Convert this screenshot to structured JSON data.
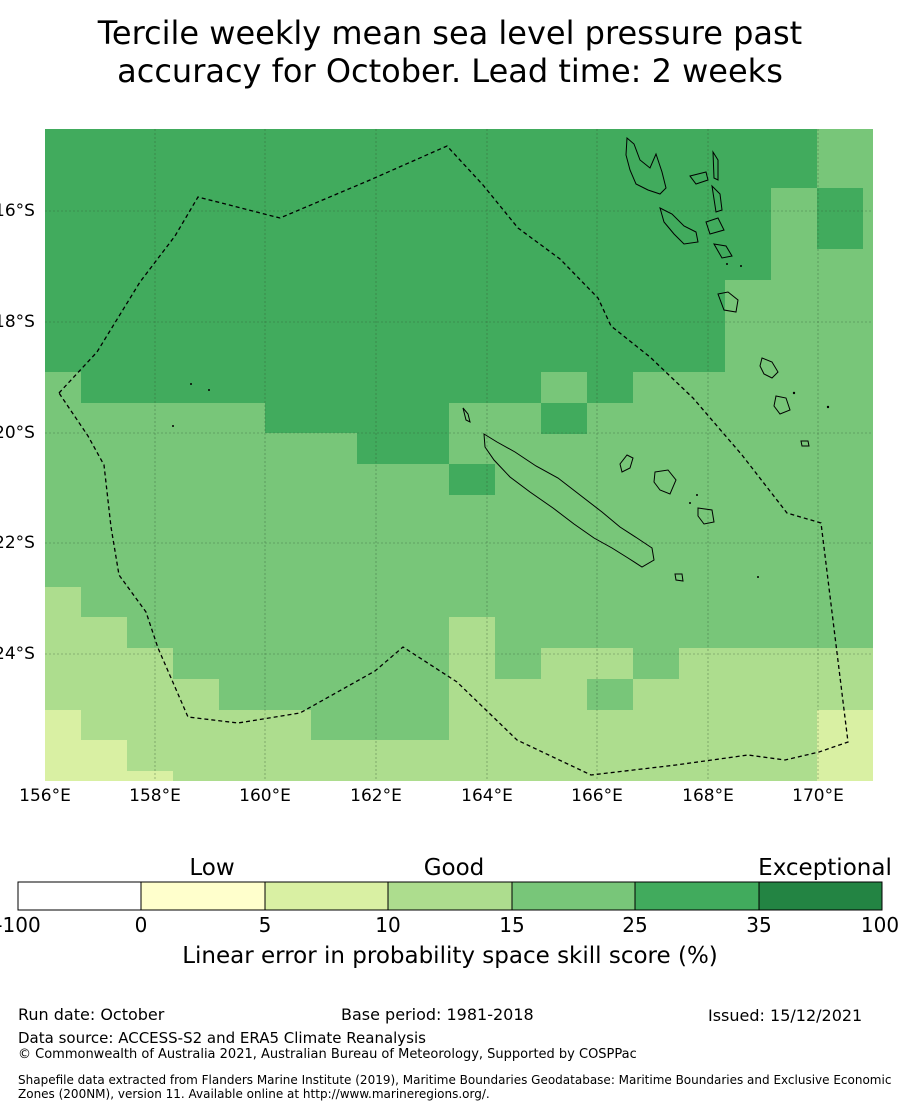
{
  "title_line1": "Tercile weekly mean sea level pressure past",
  "title_line2": "accuracy for October. Lead time: 2 weeks",
  "lon_labels": [
    "156°E",
    "158°E",
    "160°E",
    "162°E",
    "164°E",
    "166°E",
    "168°E",
    "170°E"
  ],
  "lat_labels": [
    "16°S",
    "18°S",
    "20°S",
    "22°S",
    "24°S"
  ],
  "colorbar": {
    "categories": [
      "Low",
      "Good",
      "Exceptional"
    ],
    "ticks": [
      "-100",
      "0",
      "5",
      "10",
      "15",
      "25",
      "35",
      "100"
    ],
    "colors": [
      "#ffffff",
      "#ffffcc",
      "#d9f0a3",
      "#addd8e",
      "#78c679",
      "#41ab5d",
      "#238443"
    ],
    "label": "Linear error in probability space skill score (%)"
  },
  "footer": {
    "run_date": "Run date: October",
    "base_period": "Base period: 1981-2018",
    "issued": "Issued: 15/12/2021",
    "data_source": "Data source: ACCESS-S2 and ERA5 Climate Reanalysis",
    "copyright": "© Commonwealth of Australia 2021, Australian Bureau of Meteorology, Supported by COSPPac",
    "shapefile": "Shapefile data extracted from Flanders Marine Institute (2019), Maritime Boundaries Geodatabase: Maritime Boundaries and Exclusive Economic Zones (200NM), version 11. Available online at http://www.marineregions.org/."
  },
  "map_colors": {
    "c35": "#41ab5d",
    "c25": "#78c679",
    "c15": "#addd8e",
    "c10": "#d9f0a3",
    "grid": "#333333",
    "land_outline": "#000000",
    "eez": "#000000"
  }
}
